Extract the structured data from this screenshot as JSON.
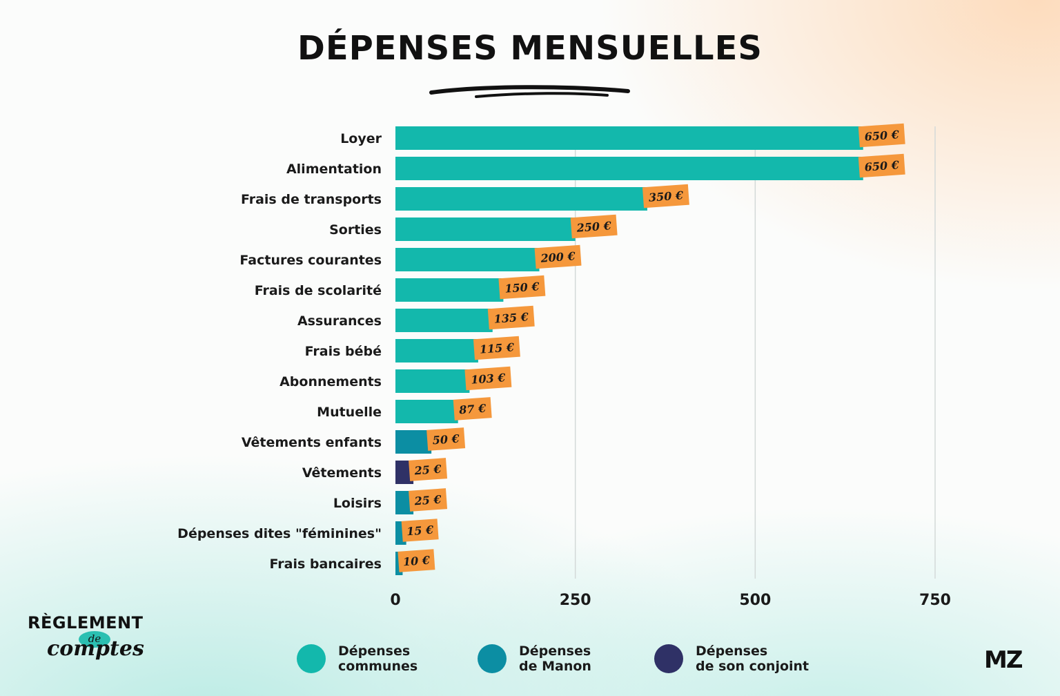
{
  "title": "DÉPENSES MENSUELLES",
  "brand_left": {
    "top": "RÈGLEMENT",
    "middle": "de",
    "bottom": "comptes"
  },
  "brand_right": "MZ",
  "colors": {
    "communes": "#13b8ac",
    "manon": "#0c8ea3",
    "conjoint": "#2f3166",
    "label_bg": "#f5983c"
  },
  "chart_data": {
    "type": "bar",
    "orientation": "horizontal",
    "categories": [
      "Loyer",
      "Alimentation",
      "Frais de transports",
      "Sorties",
      "Factures courantes",
      "Frais de scolarité",
      "Assurances",
      "Frais bébé",
      "Abonnements",
      "Mutuelle",
      "Vêtements enfants",
      "Vêtements",
      "Loisirs",
      "Dépenses dites \"féminines\"",
      "Frais bancaires"
    ],
    "values": [
      650,
      650,
      350,
      250,
      200,
      150,
      135,
      115,
      103,
      87,
      50,
      25,
      25,
      15,
      10
    ],
    "value_labels": [
      "650 €",
      "650 €",
      "350 €",
      "250 €",
      "200 €",
      "150 €",
      "135 €",
      "115 €",
      "103 €",
      "87 €",
      "50 €",
      "25 €",
      "25 €",
      "15 €",
      "10 €"
    ],
    "groups": [
      "communes",
      "communes",
      "communes",
      "communes",
      "communes",
      "communes",
      "communes",
      "communes",
      "communes",
      "communes",
      "manon",
      "conjoint",
      "manon",
      "manon",
      "manon"
    ],
    "xlim": [
      0,
      750
    ],
    "xticks": [
      0,
      250,
      500,
      750
    ],
    "grid": true,
    "legend_position": "bottom",
    "legend": [
      {
        "key": "communes",
        "line1": "Dépenses",
        "line2": "communes"
      },
      {
        "key": "manon",
        "line1": "Dépenses",
        "line2": "de Manon"
      },
      {
        "key": "conjoint",
        "line1": "Dépenses",
        "line2": "de son conjoint"
      }
    ]
  }
}
